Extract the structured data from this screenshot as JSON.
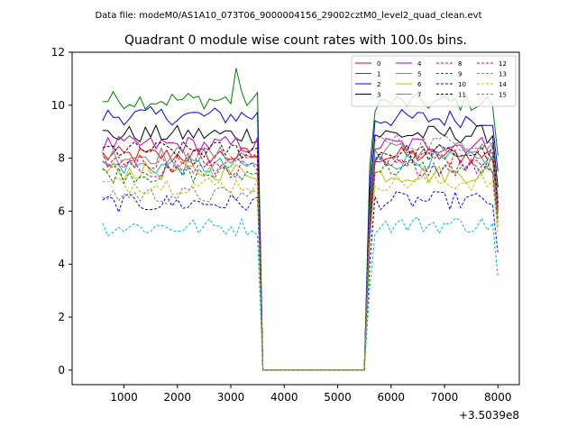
{
  "suptitle": "Data file: modeM0/AS1A10_073T06_9000004156_29002cztM0_level2_quad_clean.evt",
  "chart_data": {
    "type": "line",
    "title": "Quadrant 0 module wise count rates with 100.0s bins.",
    "xlabel": "",
    "ylabel": "",
    "x_offset_label": "+3.5039e8",
    "xlim": [
      30,
      8400
    ],
    "ylim": [
      -0.55,
      12.0
    ],
    "xticks": [
      1000,
      2000,
      3000,
      4000,
      5000,
      6000,
      7000,
      8000
    ],
    "xtick_labels": [
      "1000",
      "2000",
      "3000",
      "4000",
      "5000",
      "6000",
      "7000",
      "8000"
    ],
    "yticks": [
      0,
      2,
      4,
      6,
      8,
      10,
      12
    ],
    "ytick_labels": [
      "0",
      "2",
      "4",
      "6",
      "8",
      "10",
      "12"
    ],
    "grid": false,
    "legend_position": "upper right",
    "legend_columns": 4,
    "bin_seconds": 100,
    "x_start": 600,
    "x_step": 100,
    "active_ranges": [
      [
        600,
        3500
      ],
      [
        5600,
        8000
      ]
    ],
    "gap_value": 0.0,
    "series": [
      {
        "name": "0",
        "color": "#ff0000",
        "dashed": false,
        "high_mean": 8.1,
        "low_mean": 8.1
      },
      {
        "name": "1",
        "color": "#008000",
        "dashed": false,
        "high_mean": 10.2,
        "low_mean": 10.1
      },
      {
        "name": "2",
        "color": "#0000ff",
        "dashed": false,
        "high_mean": 9.6,
        "low_mean": 9.5
      },
      {
        "name": "3",
        "color": "#000000",
        "dashed": false,
        "high_mean": 8.9,
        "low_mean": 8.9
      },
      {
        "name": "4",
        "color": "#bf00bf",
        "dashed": false,
        "high_mean": 8.5,
        "low_mean": 8.5
      },
      {
        "name": "5",
        "color": "#00bfbf",
        "dashed": false,
        "high_mean": 7.7,
        "low_mean": 7.9
      },
      {
        "name": "6",
        "color": "#bfbf00",
        "dashed": false,
        "high_mean": 7.5,
        "low_mean": 7.4
      },
      {
        "name": "7",
        "color": "#808080",
        "dashed": false,
        "high_mean": 8.1,
        "low_mean": 8.3
      },
      {
        "name": "8",
        "color": "#ff0000",
        "dashed": true,
        "high_mean": 7.9,
        "low_mean": 8.0
      },
      {
        "name": "9",
        "color": "#008000",
        "dashed": true,
        "high_mean": 7.4,
        "low_mean": 7.6
      },
      {
        "name": "10",
        "color": "#0000ff",
        "dashed": true,
        "high_mean": 6.3,
        "low_mean": 6.4
      },
      {
        "name": "11",
        "color": "#000000",
        "dashed": true,
        "high_mean": 8.3,
        "low_mean": 8.2
      },
      {
        "name": "12",
        "color": "#bf00bf",
        "dashed": true,
        "high_mean": 7.6,
        "low_mean": 7.7
      },
      {
        "name": "13",
        "color": "#00bfbf",
        "dashed": true,
        "high_mean": 5.4,
        "low_mean": 5.5
      },
      {
        "name": "14",
        "color": "#bfbf00",
        "dashed": true,
        "high_mean": 7.0,
        "low_mean": 7.1
      },
      {
        "name": "15",
        "color": "#808080",
        "dashed": true,
        "high_mean": 6.6,
        "low_mean": 8.6
      }
    ],
    "notes": "Per-bin count rates are approximate readings; each active bin carries roughly ±0.3 c/s scatter around the listed mean, dropping to 0.0 inside the gap from 3600 to 5500."
  }
}
